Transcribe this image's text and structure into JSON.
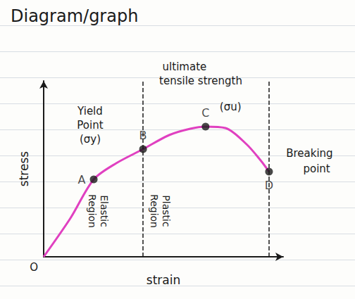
{
  "chart_data": {
    "type": "line",
    "title": "Diagram/graph",
    "x_label": "strain",
    "y_label": "stress",
    "xlim": [
      0,
      100
    ],
    "ylim": [
      0,
      100
    ],
    "tick_labels": false,
    "grid": false,
    "x": [
      0,
      11.2,
      20.9,
      30.3,
      41.5,
      52.4,
      61.2,
      67.6,
      75.9,
      84.7,
      90.6,
      94.1
    ],
    "values": [
      0,
      22,
      44,
      53.2,
      61.2,
      69.2,
      72.8,
      74,
      73.2,
      64,
      54.8,
      48.4
    ],
    "color": "#e040c0",
    "line_style": "solid",
    "marker": "none",
    "points": [
      {
        "label": "A",
        "x": 20.9,
        "y": 44
      },
      {
        "label": "B",
        "x": 41.5,
        "y": 61.2
      },
      {
        "label": "C",
        "x": 67.6,
        "y": 74
      },
      {
        "label": "D",
        "x": 94.1,
        "y": 48.4
      }
    ],
    "dashed_lines": [
      41.5,
      94.1
    ],
    "annotations": [
      {
        "text": "O",
        "x": -4.1,
        "y": -6
      },
      {
        "text": "Yield",
        "x": 19.4,
        "y": 82.8
      },
      {
        "text": "Point",
        "x": 19.4,
        "y": 74.8
      },
      {
        "text": "(σy)",
        "x": 19.4,
        "y": 66.8
      },
      {
        "text": "ultimate",
        "x": 58.8,
        "y": 108
      },
      {
        "text": "tensile strength",
        "x": 65.6,
        "y": 100
      },
      {
        "text": "(σu)",
        "x": 78,
        "y": 85.2
      },
      {
        "text": "Breaking",
        "x": 111,
        "y": 58.8
      },
      {
        "text": "point",
        "x": 114,
        "y": 50
      }
    ],
    "vertical_annotations": [
      {
        "text": "Elastic Region",
        "x": 22.9,
        "y": 26
      },
      {
        "text": "Plastic Region",
        "x": 48.8,
        "y": 26
      }
    ]
  }
}
